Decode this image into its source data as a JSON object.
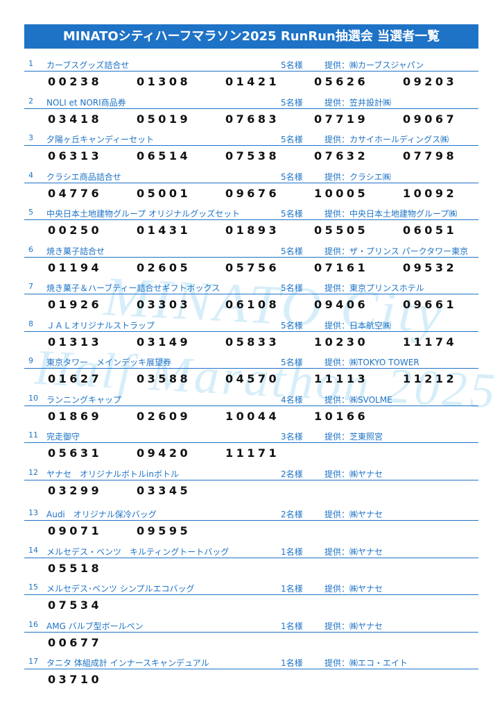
{
  "header": {
    "title": "MINATOシティハーフマラソン2025 RunRun抽選会 当選者一覧"
  },
  "watermark": [
    "MINATO City",
    "Half Marathon 2025"
  ],
  "prizes": [
    {
      "no": "1",
      "name": "カーブスグッズ詰合せ",
      "count": "5名様",
      "provider": "提供：㈱カーブスジャパン",
      "winners": [
        "00238",
        "01308",
        "01421",
        "05626",
        "09203"
      ]
    },
    {
      "no": "2",
      "name": "NOLI et NORI商品券",
      "count": "5名様",
      "provider": "提供：笠井設計㈱",
      "winners": [
        "03418",
        "05019",
        "07683",
        "07719",
        "09067"
      ]
    },
    {
      "no": "3",
      "name": "夕陽ヶ丘キャンディーセット",
      "count": "5名様",
      "provider": "提供：カサイホールディングス㈱",
      "winners": [
        "06313",
        "06514",
        "07538",
        "07632",
        "07798"
      ]
    },
    {
      "no": "4",
      "name": "クラシエ商品詰合せ",
      "count": "5名様",
      "provider": "提供：クラシエ㈱",
      "winners": [
        "04776",
        "05001",
        "09676",
        "10005",
        "10092"
      ]
    },
    {
      "no": "5",
      "name": "中央日本土地建物グループ オリジナルグッズセット",
      "count": "5名様",
      "provider": "提供：中央日本土地建物グループ㈱",
      "winners": [
        "00250",
        "01431",
        "01893",
        "05505",
        "06051"
      ]
    },
    {
      "no": "6",
      "name": "焼き菓子詰合せ",
      "count": "5名様",
      "provider": "提供：ザ・プリンス パークタワー東京",
      "winners": [
        "01194",
        "02605",
        "05756",
        "07161",
        "09532"
      ]
    },
    {
      "no": "7",
      "name": "焼き菓子＆ハーブティー詰合せギフトボックス",
      "count": "5名様",
      "provider": "提供：東京プリンスホテル",
      "winners": [
        "01926",
        "03303",
        "06108",
        "09406",
        "09661"
      ]
    },
    {
      "no": "8",
      "name": "ＪＡＬオリジナルストラップ",
      "count": "5名様",
      "provider": "提供：日本航空㈱",
      "winners": [
        "01313",
        "03149",
        "05833",
        "10230",
        "11174"
      ]
    },
    {
      "no": "9",
      "name": "東京タワー　メインデッキ展望券",
      "count": "5名様",
      "provider": "提供：㈱TOKYO TOWER",
      "winners": [
        "01627",
        "03588",
        "04570",
        "11113",
        "11212"
      ]
    },
    {
      "no": "10",
      "name": "ランニングキャップ",
      "count": "4名様",
      "provider": "提供：㈱SVOLME",
      "winners": [
        "01869",
        "02609",
        "10044",
        "10166"
      ]
    },
    {
      "no": "11",
      "name": "完走御守",
      "count": "3名様",
      "provider": "提供：芝東照宮",
      "winners": [
        "05631",
        "09420",
        "11171"
      ]
    },
    {
      "no": "12",
      "name": "ヤナセ　オリジナルボトルinボトル",
      "count": "2名様",
      "provider": "提供：㈱ヤナセ",
      "winners": [
        "03299",
        "03345"
      ]
    },
    {
      "no": "13",
      "name": "Audi　オリジナル保冷バッグ",
      "count": "2名様",
      "provider": "提供：㈱ヤナセ",
      "winners": [
        "09071",
        "09595"
      ]
    },
    {
      "no": "14",
      "name": "メルセデス・ベンツ　キルティングトートバッグ",
      "count": "1名様",
      "provider": "提供：㈱ヤナセ",
      "winners": [
        "05518"
      ]
    },
    {
      "no": "15",
      "name": "メルセデス･ベンツ シンプルエコバッグ",
      "count": "1名様",
      "provider": "提供：㈱ヤナセ",
      "winners": [
        "07534"
      ]
    },
    {
      "no": "16",
      "name": "AMG バルブ型ボールペン",
      "count": "1名様",
      "provider": "提供：㈱ヤナセ",
      "winners": [
        "00677"
      ]
    },
    {
      "no": "17",
      "name": "タニタ 体組成計 インナースキャンデュアル",
      "count": "1名様",
      "provider": "提供：㈱エコ・エイト",
      "winners": [
        "03710"
      ]
    }
  ]
}
